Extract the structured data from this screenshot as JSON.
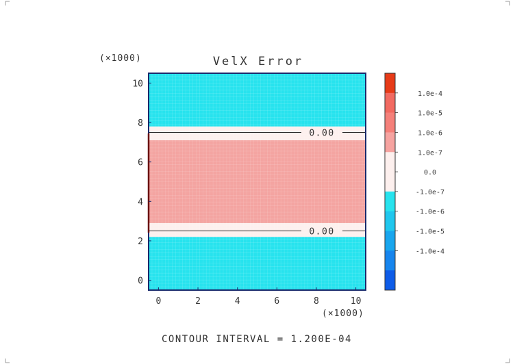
{
  "chart_data": {
    "type": "heatmap",
    "title": "VelX Error",
    "x_scale_label": "(×1000)",
    "y_scale_label": "(×1000)",
    "xlim": [
      -0.5,
      10.5
    ],
    "ylim": [
      -0.5,
      10.5
    ],
    "x_ticks": [
      0,
      2,
      4,
      6,
      8,
      10
    ],
    "y_ticks": [
      0,
      2,
      4,
      6,
      8,
      10
    ],
    "bands": [
      {
        "y0": -0.5,
        "y1": 2.2,
        "level": "-1.0e-7 to -1.0e-6",
        "color": "#27e3ee"
      },
      {
        "y0": 2.2,
        "y1": 2.9,
        "level": "0.0 to 1.0e-7",
        "color": "#fdf0ee"
      },
      {
        "y0": 2.9,
        "y1": 7.1,
        "level": "1.0e-6 to 1.0e-7",
        "color": "#f4a4a1"
      },
      {
        "y0": 7.1,
        "y1": 7.8,
        "level": "0.0 to 1.0e-7",
        "color": "#fdf0ee"
      },
      {
        "y0": 7.8,
        "y1": 10.5,
        "level": "-1.0e-7 to -1.0e-6",
        "color": "#27e3ee"
      }
    ],
    "contour_lines": [
      {
        "y": 7.5,
        "label": "0.00"
      },
      {
        "y": 2.5,
        "label": "0.00"
      }
    ],
    "colorbar": {
      "segments": [
        {
          "color": "#e73b18"
        },
        {
          "color": "#f26a61"
        },
        {
          "color": "#f5807a"
        },
        {
          "color": "#f6a3a0"
        },
        {
          "color": "#fdf0ee"
        },
        {
          "color": "#fdf0ee"
        },
        {
          "color": "#27e3ee"
        },
        {
          "color": "#1fc7ee"
        },
        {
          "color": "#18a6ee"
        },
        {
          "color": "#1685ee"
        },
        {
          "color": "#0e5ce8"
        }
      ],
      "labels": [
        "1.0e-4",
        "1.0e-5",
        "1.0e-6",
        "1.0e-7",
        "0.0",
        "-1.0e-7",
        "-1.0e-6",
        "-1.0e-5",
        "-1.0e-4"
      ]
    },
    "footer": "CONTOUR INTERVAL = 1.200E-04"
  }
}
